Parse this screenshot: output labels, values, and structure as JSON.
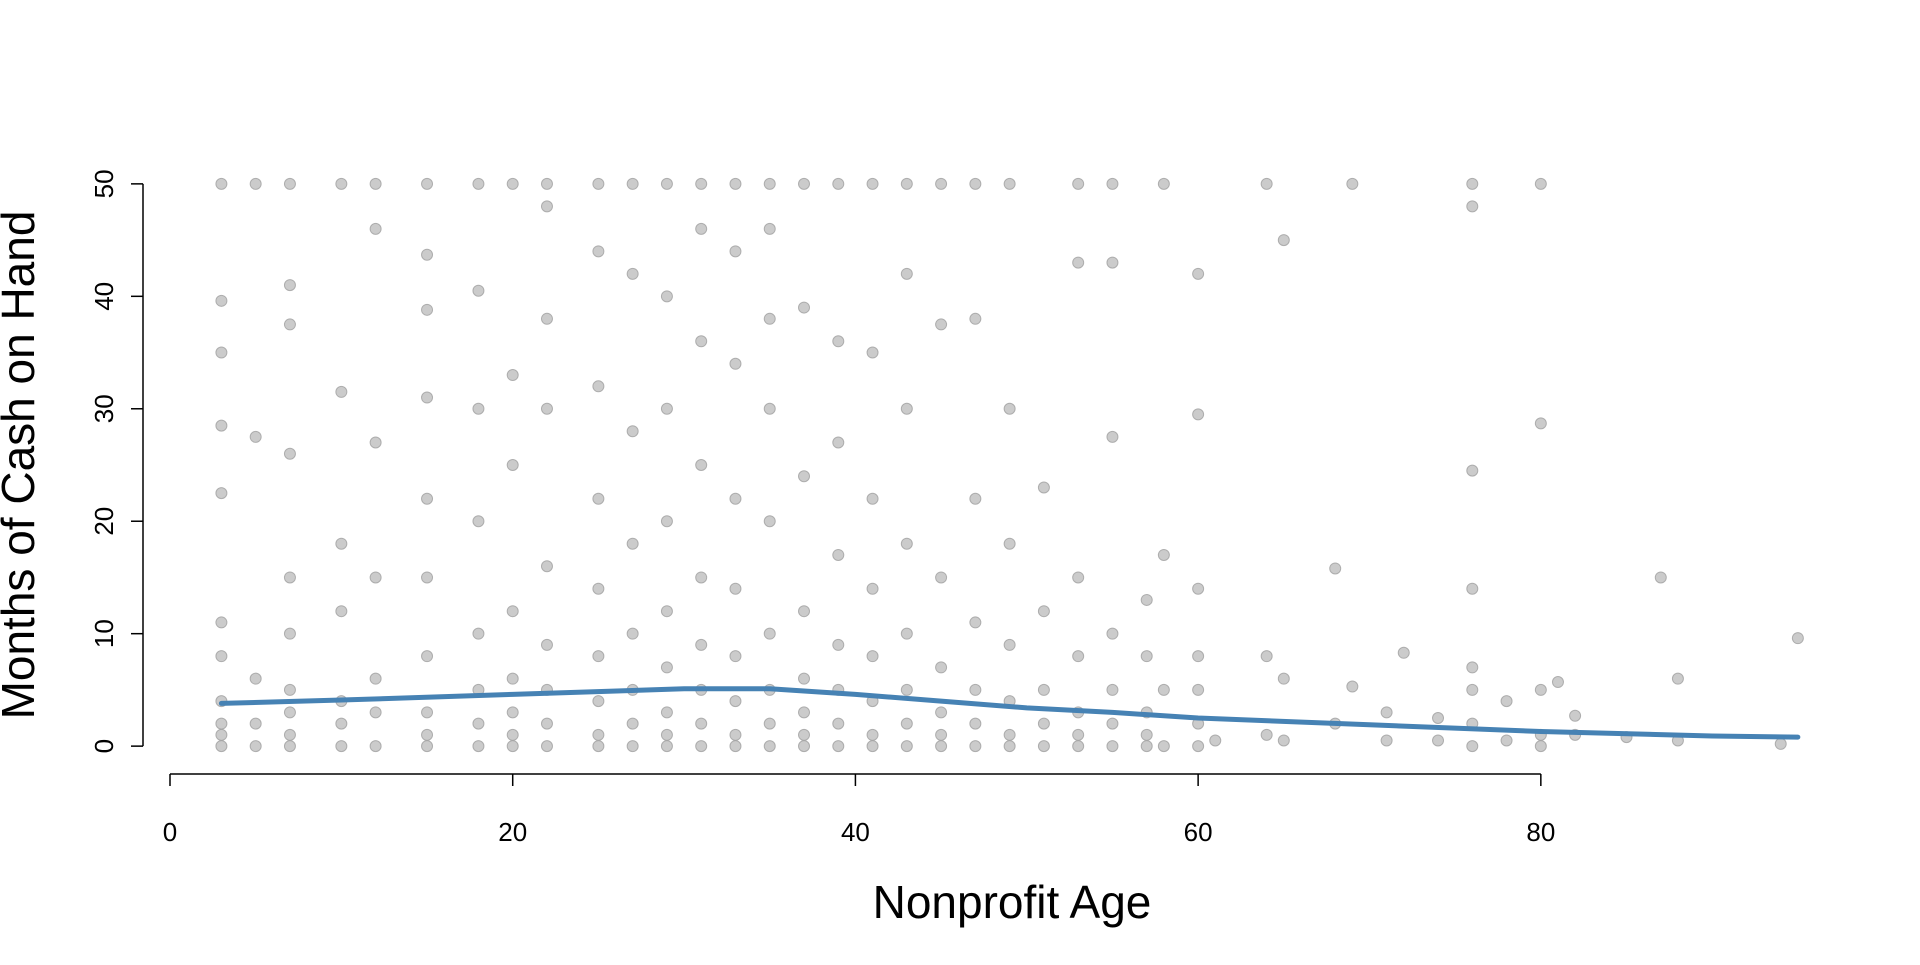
{
  "chart_data": {
    "type": "scatter",
    "x_label": "Nonprofit Age",
    "y_label": "Months of Cash on Hand",
    "xlim": [
      0,
      96
    ],
    "ylim": [
      -1.5,
      51.5
    ],
    "xticks": [
      0,
      20,
      40,
      60,
      80
    ],
    "yticks": [
      0,
      10,
      20,
      30,
      40,
      50
    ],
    "grid": false,
    "series": [
      {
        "type": "scatter",
        "color": "#a0a0a0",
        "x": [
          3,
          3,
          3,
          3,
          3,
          3,
          3,
          3,
          3,
          3,
          3,
          5,
          5,
          5,
          5,
          5,
          7,
          7,
          7,
          7,
          7,
          7,
          7,
          7,
          7,
          7,
          10,
          10,
          10,
          10,
          10,
          10,
          10,
          12,
          12,
          12,
          12,
          12,
          12,
          12,
          15,
          15,
          15,
          15,
          15,
          15,
          15,
          15,
          15,
          15,
          18,
          18,
          18,
          18,
          18,
          18,
          18,
          18,
          20,
          20,
          20,
          20,
          20,
          20,
          20,
          20,
          22,
          22,
          22,
          22,
          22,
          22,
          22,
          22,
          22,
          25,
          25,
          25,
          25,
          25,
          25,
          25,
          25,
          25,
          27,
          27,
          27,
          27,
          27,
          27,
          27,
          27,
          29,
          29,
          29,
          29,
          29,
          29,
          29,
          29,
          29,
          31,
          31,
          31,
          31,
          31,
          31,
          31,
          31,
          31,
          33,
          33,
          33,
          33,
          33,
          33,
          33,
          33,
          33,
          35,
          35,
          35,
          35,
          35,
          35,
          35,
          35,
          35,
          37,
          37,
          37,
          37,
          37,
          37,
          37,
          37,
          39,
          39,
          39,
          39,
          39,
          39,
          39,
          39,
          41,
          41,
          41,
          41,
          41,
          41,
          41,
          41,
          43,
          43,
          43,
          43,
          43,
          43,
          43,
          43,
          45,
          45,
          45,
          45,
          45,
          45,
          45,
          47,
          47,
          47,
          47,
          47,
          47,
          47,
          49,
          49,
          49,
          49,
          49,
          49,
          49,
          51,
          51,
          51,
          51,
          51,
          53,
          53,
          53,
          53,
          53,
          53,
          53,
          55,
          55,
          55,
          55,
          55,
          55,
          55,
          57,
          57,
          57,
          57,
          57,
          58,
          58,
          58,
          58,
          60,
          60,
          60,
          60,
          60,
          60,
          60,
          61,
          64,
          64,
          64,
          65,
          65,
          65,
          68,
          68,
          69,
          69,
          71,
          71,
          72,
          74,
          74,
          76,
          76,
          76,
          76,
          76,
          76,
          76,
          76,
          78,
          78,
          80,
          80,
          80,
          80,
          80,
          81,
          82,
          82,
          85,
          87,
          88,
          88,
          94,
          95
        ],
        "values": [
          0,
          1,
          2,
          4,
          8,
          11,
          22.5,
          28.5,
          35,
          39.6,
          50,
          0,
          2,
          6,
          27.5,
          50,
          0,
          1,
          3,
          5,
          10,
          15,
          26,
          37.5,
          41,
          50,
          0,
          2,
          4,
          12,
          18,
          31.5,
          50,
          0,
          3,
          6,
          15,
          27,
          46,
          50,
          0,
          1,
          3,
          8,
          15,
          22,
          31,
          38.8,
          43.7,
          50,
          0,
          2,
          5,
          10,
          20,
          30,
          40.5,
          50,
          0,
          1,
          3,
          6,
          12,
          25,
          33,
          50,
          0,
          2,
          5,
          9,
          16,
          30,
          38,
          48,
          50,
          0,
          1,
          4,
          8,
          14,
          22,
          32,
          44,
          50,
          0,
          2,
          5,
          10,
          18,
          28,
          42,
          50,
          0,
          1,
          3,
          7,
          12,
          20,
          30,
          40,
          50,
          0,
          2,
          5,
          9,
          15,
          25,
          36,
          46,
          50,
          0,
          1,
          4,
          8,
          14,
          22,
          34,
          44,
          50,
          0,
          2,
          5,
          10,
          20,
          30,
          38,
          46,
          50,
          0,
          1,
          3,
          6,
          12,
          24,
          39,
          50,
          0,
          2,
          5,
          9,
          17,
          27,
          36,
          50,
          0,
          1,
          4,
          8,
          14,
          22,
          35,
          50,
          0,
          2,
          5,
          10,
          18,
          30,
          42,
          50,
          0,
          1,
          3,
          7,
          15,
          37.5,
          50,
          0,
          2,
          5,
          11,
          22,
          38,
          50,
          0,
          1,
          4,
          9,
          18,
          30,
          50,
          0,
          2,
          5,
          12,
          23,
          0,
          1,
          3,
          8,
          15,
          43,
          50,
          0,
          2,
          5,
          10,
          27.5,
          43,
          50,
          0,
          1,
          3,
          8,
          13,
          0,
          5,
          17,
          50,
          0,
          2,
          5,
          8,
          14,
          29.5,
          42,
          0.5,
          1,
          8,
          50,
          0.5,
          6,
          45,
          2,
          15.8,
          5.3,
          50,
          0.5,
          3,
          8.3,
          0.5,
          2.5,
          0,
          2,
          5,
          7,
          14,
          24.5,
          48,
          50,
          0.5,
          4,
          0,
          1,
          5,
          28.7,
          50,
          5.7,
          1,
          2.7,
          0.8,
          15,
          0.5,
          6,
          0.2,
          9.6
        ]
      },
      {
        "type": "line",
        "color": "#4682b4",
        "x": [
          3,
          10,
          20,
          30,
          35,
          40,
          45,
          50,
          55,
          60,
          70,
          80,
          90,
          95
        ],
        "values": [
          3.8,
          4.1,
          4.6,
          5.1,
          5.1,
          4.6,
          4.0,
          3.4,
          3.0,
          2.5,
          1.9,
          1.3,
          0.9,
          0.8
        ]
      }
    ]
  }
}
